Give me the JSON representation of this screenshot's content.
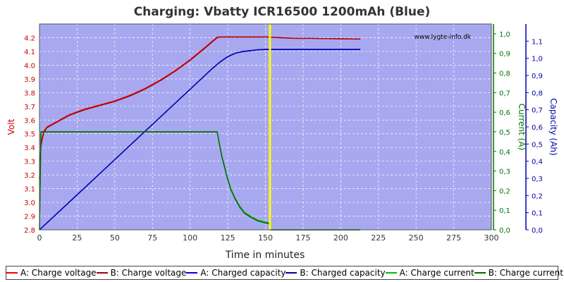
{
  "chart_data": {
    "type": "line",
    "title": "Charging: Vbatty ICR16500 1200mAh (Blue)",
    "watermark": "www.lygte-info.dk",
    "xlabel": "Time in minutes",
    "xlim": [
      0,
      300
    ],
    "x_ticks": [
      "0",
      "25",
      "50",
      "75",
      "100",
      "125",
      "150",
      "175",
      "200",
      "225",
      "250",
      "275",
      "300"
    ],
    "axes": {
      "voltage": {
        "label": "Volt",
        "range": [
          2.8,
          4.3
        ],
        "ticks": [
          "2.8",
          "2.9",
          "3.0",
          "3.1",
          "3.2",
          "3.3",
          "3.4",
          "3.5",
          "3.6",
          "3.7",
          "3.8",
          "3.9",
          "4.0",
          "4.1",
          "4.2"
        ],
        "color": "#cc0000"
      },
      "current": {
        "label": "Current (A)",
        "range": [
          0,
          1.05
        ],
        "ticks": [
          "0,0",
          "0,1",
          "0,2",
          "0,3",
          "0,4",
          "0,5",
          "0,6",
          "0,7",
          "0,8",
          "0,9",
          "1,0"
        ],
        "color": "#007700"
      },
      "capacity": {
        "label": "Capacity (Ah)",
        "range": [
          0,
          1.2
        ],
        "ticks": [
          "0,0",
          "0,1",
          "0,2",
          "0,3",
          "0,4",
          "0,5",
          "0,6",
          "0,7",
          "0,8",
          "0,9",
          "1,0",
          "1,1"
        ],
        "color": "#0000aa"
      }
    },
    "grid": true,
    "background": "#a8a8f0",
    "marker_line": {
      "x": 153,
      "color": "#ffff00"
    },
    "legend_position": "bottom",
    "series": [
      {
        "name": "A: Charge voltage",
        "axis": "voltage",
        "color": "#ee0000",
        "x": [
          0,
          1,
          2,
          3,
          5,
          10,
          15,
          20,
          30,
          40,
          50,
          60,
          70,
          80,
          90,
          100,
          110,
          118,
          120,
          130,
          140,
          150,
          160,
          170,
          180,
          190,
          200,
          213
        ],
        "y": [
          3.18,
          3.42,
          3.48,
          3.52,
          3.55,
          3.58,
          3.61,
          3.64,
          3.68,
          3.71,
          3.74,
          3.78,
          3.83,
          3.89,
          3.96,
          4.04,
          4.13,
          4.205,
          4.205,
          4.205,
          4.205,
          4.205,
          4.2,
          4.195,
          4.195,
          4.193,
          4.192,
          4.19
        ]
      },
      {
        "name": "B: Charge voltage",
        "axis": "voltage",
        "color": "#aa0000",
        "x": [
          0,
          1,
          2,
          3,
          5,
          10,
          15,
          20,
          30,
          40,
          50,
          60,
          70,
          80,
          90,
          100,
          110,
          118,
          120,
          130,
          140,
          150,
          160,
          170,
          180,
          190,
          200,
          213
        ],
        "y": [
          3.17,
          3.41,
          3.47,
          3.51,
          3.545,
          3.575,
          3.605,
          3.635,
          3.675,
          3.705,
          3.735,
          3.775,
          3.825,
          3.885,
          3.955,
          4.035,
          4.125,
          4.2,
          4.205,
          4.205,
          4.205,
          4.205,
          4.2,
          4.195,
          4.195,
          4.193,
          4.192,
          4.19
        ]
      },
      {
        "name": "A: Charged capacity",
        "axis": "capacity",
        "color": "#0000ee",
        "x": [
          0,
          20,
          40,
          60,
          80,
          100,
          115,
          120,
          125,
          130,
          135,
          140,
          145,
          150,
          160,
          170,
          180,
          190,
          200,
          213
        ],
        "y": [
          0,
          0.164,
          0.328,
          0.492,
          0.656,
          0.82,
          0.943,
          0.98,
          1.01,
          1.03,
          1.04,
          1.045,
          1.05,
          1.052,
          1.052,
          1.052,
          1.052,
          1.052,
          1.052,
          1.052
        ]
      },
      {
        "name": "B: Charged capacity",
        "axis": "capacity",
        "color": "#0000aa",
        "x": [
          0,
          20,
          40,
          60,
          80,
          100,
          115,
          120,
          125,
          130,
          135,
          140,
          145,
          150,
          160,
          170,
          180,
          190,
          200,
          213
        ],
        "y": [
          0,
          0.163,
          0.327,
          0.491,
          0.655,
          0.819,
          0.942,
          0.979,
          1.009,
          1.029,
          1.039,
          1.044,
          1.049,
          1.051,
          1.051,
          1.051,
          1.051,
          1.051,
          1.051,
          1.051
        ]
      },
      {
        "name": "A: Charge current",
        "axis": "current",
        "color": "#00bb00",
        "x": [
          0,
          1,
          2,
          118,
          119,
          121,
          123,
          125,
          127,
          130,
          133,
          136,
          140,
          145,
          150,
          153,
          153.1,
          213
        ],
        "y": [
          0,
          0.5,
          0.5,
          0.5,
          0.46,
          0.38,
          0.32,
          0.26,
          0.21,
          0.16,
          0.12,
          0.09,
          0.07,
          0.05,
          0.04,
          0.035,
          0.0,
          0.0
        ]
      },
      {
        "name": "B: Charge current",
        "axis": "current",
        "color": "#006600",
        "x": [
          0,
          1,
          2,
          118,
          119,
          121,
          123,
          125,
          127,
          130,
          133,
          136,
          140,
          145,
          150,
          153,
          153.1,
          213
        ],
        "y": [
          0,
          0.5,
          0.5,
          0.5,
          0.455,
          0.375,
          0.315,
          0.255,
          0.205,
          0.155,
          0.115,
          0.085,
          0.065,
          0.045,
          0.035,
          0.03,
          0.0,
          0.0
        ]
      }
    ]
  }
}
